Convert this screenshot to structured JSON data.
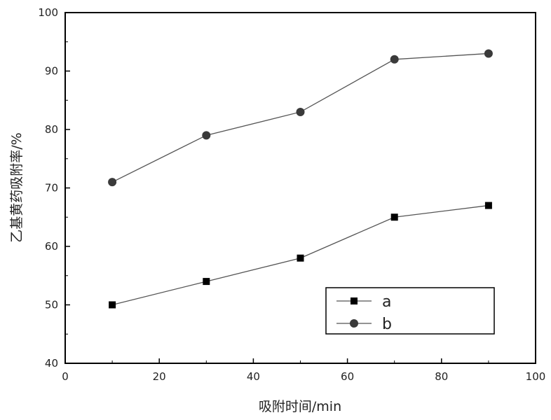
{
  "chart_data": {
    "type": "line",
    "title": "",
    "xlabel": "吸附时间/min",
    "ylabel": "乙基黄药吸附率/%",
    "xlim": [
      0,
      100
    ],
    "ylim": [
      40,
      100
    ],
    "xticks": [
      0,
      20,
      40,
      60,
      80,
      100
    ],
    "yticks": [
      40,
      50,
      60,
      70,
      80,
      90,
      100
    ],
    "grid": false,
    "legend_position": "lower-right",
    "x": [
      10,
      30,
      50,
      70,
      90
    ],
    "series": [
      {
        "name": "a",
        "marker": "square",
        "color": "#000000",
        "line_color": "#555555",
        "values": [
          50,
          54,
          58,
          65,
          67
        ]
      },
      {
        "name": "b",
        "marker": "circle",
        "color": "#3a3a3a",
        "line_color": "#555555",
        "values": [
          71,
          79,
          83,
          92,
          93
        ]
      }
    ]
  }
}
